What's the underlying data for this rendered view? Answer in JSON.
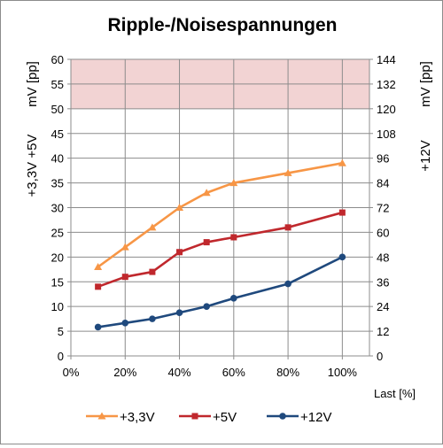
{
  "chart_data": {
    "type": "line",
    "title": "Ripple-/Noisespannungen",
    "xlabel": "Last [%]",
    "ylabel_left": [
      "+3,3V +5V",
      "mV [pp]"
    ],
    "ylabel_right": [
      "+12V",
      "mV [pp]"
    ],
    "x": [
      10,
      20,
      30,
      40,
      50,
      60,
      80,
      100
    ],
    "x_ticks": [
      "0%",
      "20%",
      "40%",
      "60%",
      "80%",
      "100%"
    ],
    "y_left_ticks": [
      "0",
      "5",
      "10",
      "15",
      "20",
      "25",
      "30",
      "35",
      "40",
      "45",
      "50",
      "55",
      "60"
    ],
    "y_right_ticks": [
      "0",
      "12",
      "24",
      "36",
      "48",
      "60",
      "72",
      "84",
      "96",
      "108",
      "120",
      "132",
      "144"
    ],
    "xlim": [
      0,
      110
    ],
    "ylim_left": [
      0,
      60
    ],
    "ylim_right": [
      0,
      144
    ],
    "limit_band_left": [
      50,
      60
    ],
    "grid": true,
    "legend_position": "bottom",
    "series": [
      {
        "name": "+3,3V",
        "axis": "left",
        "color": "#F79646",
        "marker": "triangle",
        "values": [
          18,
          22,
          26,
          30,
          33,
          35,
          37,
          39
        ]
      },
      {
        "name": "+5V",
        "axis": "left",
        "color": "#C0282D",
        "marker": "square",
        "values": [
          14,
          16,
          17,
          21,
          23,
          24,
          26,
          29
        ]
      },
      {
        "name": "+12V",
        "axis": "right",
        "color": "#1F497D",
        "marker": "circle",
        "values": [
          14,
          16,
          18,
          21,
          24,
          28,
          35,
          48
        ]
      }
    ]
  }
}
